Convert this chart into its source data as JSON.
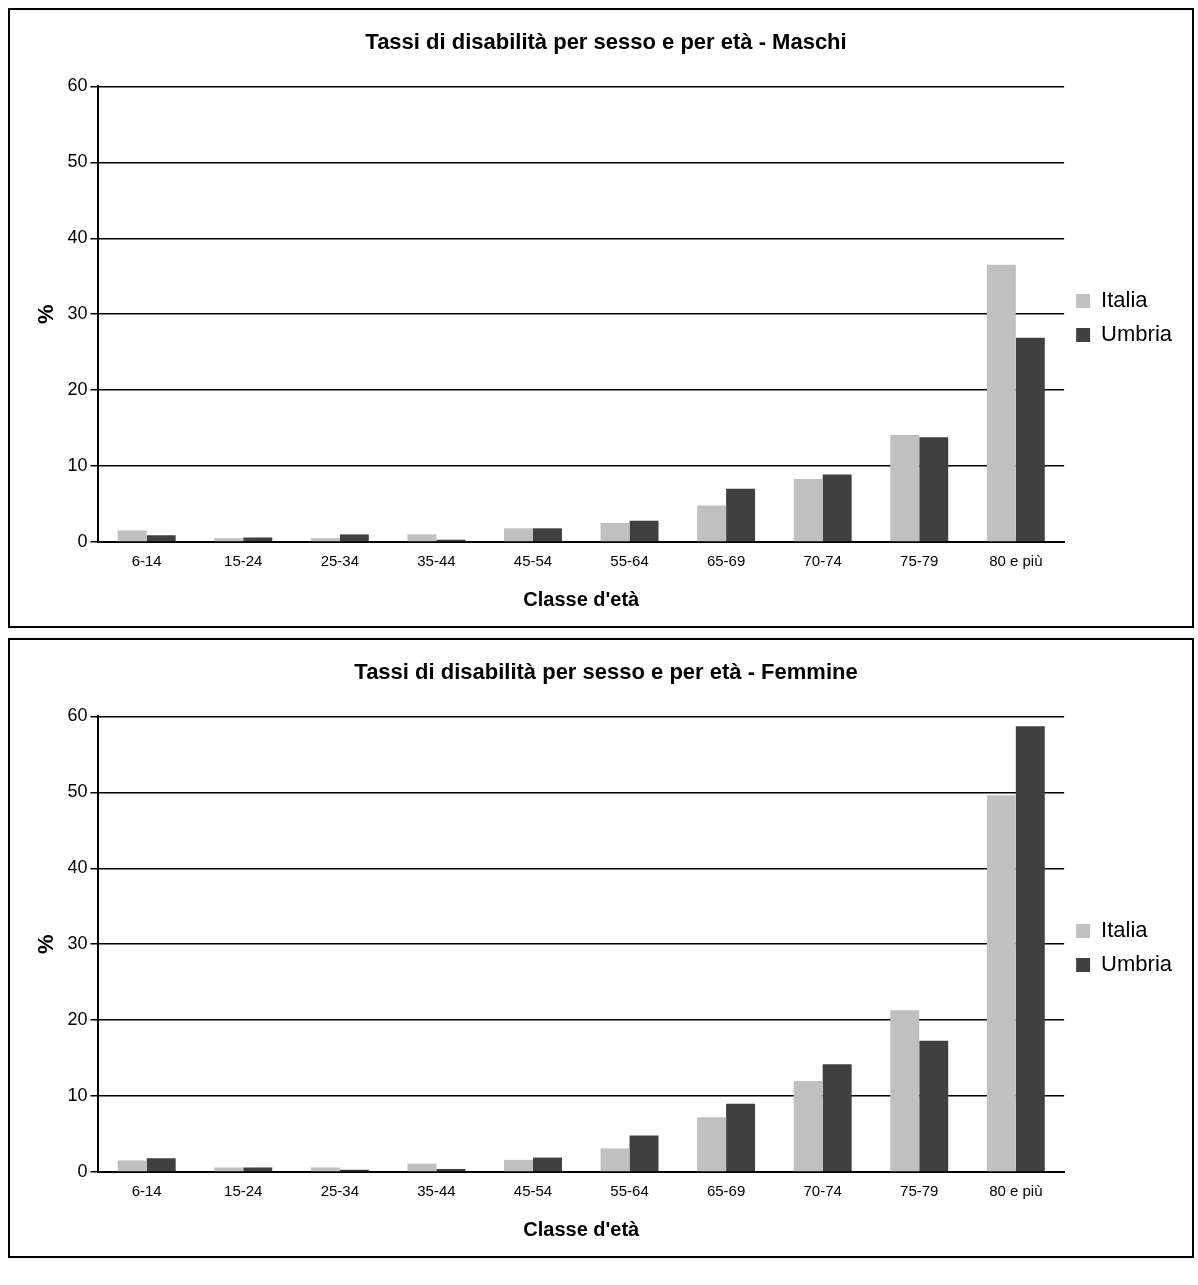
{
  "chart_data": [
    {
      "type": "bar",
      "title": "Tassi di disabilità per sesso e per età - Maschi",
      "xlabel": "Classe d'età",
      "ylabel": "%",
      "categories": [
        "6-14",
        "15-24",
        "25-34",
        "35-44",
        "45-54",
        "55-64",
        "65-69",
        "70-74",
        "75-79",
        "80 e più"
      ],
      "series": [
        {
          "name": "Italia",
          "color": "#c0c0c0",
          "values": [
            1.5,
            0.5,
            0.5,
            1.0,
            1.8,
            2.5,
            4.8,
            8.3,
            14.1,
            36.5
          ]
        },
        {
          "name": "Umbria",
          "color": "#404040",
          "values": [
            0.9,
            0.6,
            1.0,
            0.3,
            1.8,
            2.8,
            7.0,
            8.9,
            13.8,
            26.9
          ]
        }
      ],
      "ylim": [
        0,
        60
      ],
      "yticks": [
        0,
        10,
        20,
        30,
        40,
        50,
        60
      ],
      "grid": "y",
      "legend": "right"
    },
    {
      "type": "bar",
      "title": "Tassi di disabilità per sesso e per età - Femmine",
      "xlabel": "Classe d'età",
      "ylabel": "%",
      "categories": [
        "6-14",
        "15-24",
        "25-34",
        "35-44",
        "45-54",
        "55-64",
        "65-69",
        "70-74",
        "75-79",
        "80 e più"
      ],
      "series": [
        {
          "name": "Italia",
          "color": "#c0c0c0",
          "values": [
            1.5,
            0.6,
            0.6,
            1.1,
            1.6,
            3.1,
            7.2,
            12.0,
            21.3,
            49.6
          ]
        },
        {
          "name": "Umbria",
          "color": "#404040",
          "values": [
            1.8,
            0.6,
            0.3,
            0.4,
            1.9,
            4.8,
            9.0,
            14.2,
            17.3,
            58.7
          ]
        }
      ],
      "ylim": [
        0,
        60
      ],
      "yticks": [
        0,
        10,
        20,
        30,
        40,
        50,
        60
      ],
      "grid": "y",
      "legend": "right"
    }
  ]
}
